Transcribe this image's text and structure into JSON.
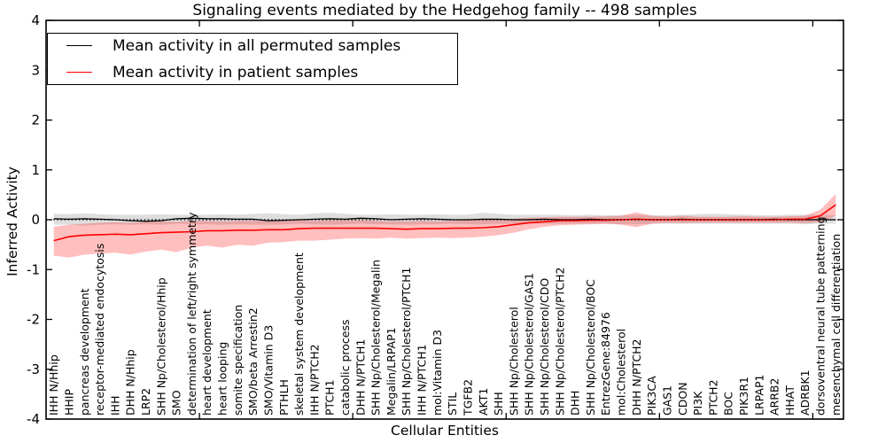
{
  "figure": {
    "title": "Signaling events mediated by the Hedgehog family -- 498 samples",
    "xlabel": "Cellular Entities",
    "ylabel": "Inferred Activity"
  },
  "legend": {
    "items": [
      {
        "label": "Mean activity in all permuted samples",
        "color": "#000000"
      },
      {
        "label": "Mean activity in patient samples",
        "color": "#ff0000"
      }
    ]
  },
  "axes": {
    "ylim": [
      -4,
      4
    ],
    "yticks": [
      -4,
      -3,
      -2,
      -1,
      0,
      1,
      2,
      3,
      4
    ],
    "xtick_positions": [
      10,
      20,
      30,
      40,
      50
    ],
    "zero_line": true
  },
  "colors": {
    "permuted_line": "#000000",
    "permuted_band": "rgba(0,0,0,0.13)",
    "patient_line": "#ff0000",
    "patient_band": "rgba(255,0,0,0.25)",
    "zero_line": "#000000",
    "background": "#ffffff",
    "text": "#000000"
  },
  "chart_data": {
    "type": "line",
    "title": "Signaling events mediated by the Hedgehog family -- 498 samples",
    "xlabel": "Cellular Entities",
    "ylabel": "Inferred Activity",
    "ylim": [
      -4,
      4
    ],
    "grid": false,
    "legend_position": "upper left",
    "categories": [
      "IHH N/Hhip",
      "HHIP",
      "pancreas development",
      "receptor-mediated endocytosis",
      "IHH",
      "DHH N/Hhip",
      "LRP2",
      "SHH Np/Cholesterol/Hhip",
      "SMO",
      "determination of left/right symmetry",
      "heart development",
      "heart looping",
      "somite specification",
      "SMO/beta Arrestin2",
      "SMO/Vitamin D3",
      "PTHLH",
      "skeletal system development",
      "IHH N/PTCH2",
      "PTCH1",
      "catabolic process",
      "DHH N/PTCH1",
      "SHH Np/Cholesterol/Megalin",
      "Megalin/LRPAP1",
      "SHH Np/Cholesterol/PTCH1",
      "IHH N/PTCH1",
      "mol:Vitamin D3",
      "STIL",
      "TGFB2",
      "AKT1",
      "SHH",
      "SHH Np/Cholesterol",
      "SHH Np/Cholesterol/GAS1",
      "SHH Np/Cholesterol/CDO",
      "SHH Np/Cholesterol/PTCH2",
      "DHH",
      "SHH Np/Cholesterol/BOC",
      "EntrezGene:84976",
      "mol:Cholesterol",
      "DHH N/PTCH2",
      "PIK3CA",
      "GAS1",
      "CDON",
      "PI3K",
      "PTCH2",
      "BOC",
      "PIK3R1",
      "LRPAP1",
      "ARRB2",
      "HHAT",
      "ADRBK1",
      "dorsoventral neural tube patterning",
      "mesenchymal cell differentiation"
    ],
    "series": [
      {
        "name": "Mean activity in all permuted samples",
        "color": "#000000",
        "values": [
          0.02,
          0.01,
          0.02,
          0.01,
          0.0,
          -0.02,
          -0.03,
          -0.02,
          0.02,
          0.03,
          0.02,
          0.02,
          0.01,
          0.01,
          -0.02,
          -0.01,
          0.0,
          0.01,
          0.02,
          0.01,
          0.03,
          0.02,
          0.0,
          0.01,
          0.02,
          0.01,
          0.0,
          0.0,
          0.01,
          0.01,
          0.0,
          0.0,
          0.01,
          0.0,
          0.0,
          0.01,
          0.0,
          0.0,
          0.01,
          0.0,
          0.0,
          0.01,
          0.0,
          0.0,
          0.0,
          0.0,
          0.0,
          0.01,
          0.0,
          0.0,
          0.0,
          0.0
        ],
        "band_low": [
          -0.1,
          -0.1,
          -0.12,
          -0.1,
          -0.09,
          -0.1,
          -0.09,
          -0.1,
          -0.08,
          -0.09,
          -0.09,
          -0.1,
          -0.09,
          -0.1,
          -0.1,
          -0.09,
          -0.08,
          -0.09,
          -0.1,
          -0.09,
          -0.08,
          -0.09,
          -0.09,
          -0.1,
          -0.09,
          -0.09,
          -0.08,
          -0.09,
          -0.09,
          -0.08,
          -0.08,
          -0.08,
          -0.08,
          -0.08,
          -0.08,
          -0.08,
          -0.08,
          -0.09,
          -0.09,
          -0.08,
          -0.08,
          -0.08,
          -0.08,
          -0.08,
          -0.08,
          -0.08,
          -0.08,
          -0.08,
          -0.08,
          -0.09,
          -0.08,
          -0.08
        ],
        "band_high": [
          0.12,
          0.11,
          0.13,
          0.11,
          0.1,
          0.1,
          0.1,
          0.11,
          0.1,
          0.1,
          0.1,
          0.11,
          0.1,
          0.12,
          0.13,
          0.11,
          0.1,
          0.13,
          0.14,
          0.12,
          0.1,
          0.1,
          0.11,
          0.1,
          0.1,
          0.11,
          0.1,
          0.1,
          0.14,
          0.12,
          0.1,
          0.1,
          0.1,
          0.1,
          0.09,
          0.1,
          0.09,
          0.09,
          0.1,
          0.09,
          0.09,
          0.1,
          0.11,
          0.12,
          0.11,
          0.1,
          0.09,
          0.09,
          0.1,
          0.1,
          0.09,
          0.09
        ]
      },
      {
        "name": "Mean activity in patient samples",
        "color": "#ff0000",
        "values": [
          -0.42,
          -0.34,
          -0.31,
          -0.3,
          -0.29,
          -0.3,
          -0.28,
          -0.26,
          -0.25,
          -0.24,
          -0.22,
          -0.22,
          -0.21,
          -0.21,
          -0.2,
          -0.2,
          -0.18,
          -0.17,
          -0.17,
          -0.17,
          -0.17,
          -0.17,
          -0.18,
          -0.19,
          -0.18,
          -0.18,
          -0.17,
          -0.17,
          -0.16,
          -0.14,
          -0.1,
          -0.06,
          -0.04,
          -0.02,
          -0.02,
          -0.01,
          -0.01,
          0.0,
          0.01,
          0.0,
          0.0,
          0.0,
          0.0,
          0.0,
          0.0,
          0.0,
          0.0,
          0.0,
          0.01,
          0.01,
          0.08,
          0.3
        ],
        "band_low": [
          -0.72,
          -0.76,
          -0.7,
          -0.68,
          -0.66,
          -0.7,
          -0.64,
          -0.6,
          -0.65,
          -0.56,
          -0.52,
          -0.56,
          -0.5,
          -0.52,
          -0.46,
          -0.45,
          -0.42,
          -0.42,
          -0.4,
          -0.38,
          -0.37,
          -0.38,
          -0.36,
          -0.38,
          -0.37,
          -0.36,
          -0.37,
          -0.36,
          -0.34,
          -0.31,
          -0.26,
          -0.19,
          -0.14,
          -0.11,
          -0.1,
          -0.09,
          -0.08,
          -0.1,
          -0.15,
          -0.08,
          -0.06,
          -0.07,
          -0.06,
          -0.06,
          -0.06,
          -0.06,
          -0.06,
          -0.06,
          -0.06,
          -0.07,
          -0.05,
          0.08
        ],
        "band_high": [
          -0.14,
          -0.1,
          -0.08,
          -0.06,
          -0.05,
          -0.06,
          -0.04,
          -0.03,
          -0.04,
          -0.02,
          -0.02,
          -0.03,
          -0.02,
          -0.02,
          -0.02,
          -0.01,
          -0.01,
          -0.02,
          -0.01,
          -0.01,
          -0.01,
          -0.02,
          -0.03,
          -0.03,
          -0.02,
          -0.03,
          -0.02,
          -0.01,
          0.0,
          0.01,
          0.02,
          0.04,
          0.05,
          0.06,
          0.06,
          0.06,
          0.07,
          0.08,
          0.15,
          0.08,
          0.06,
          0.08,
          0.06,
          0.06,
          0.06,
          0.07,
          0.06,
          0.06,
          0.07,
          0.08,
          0.2,
          0.52
        ]
      }
    ]
  }
}
